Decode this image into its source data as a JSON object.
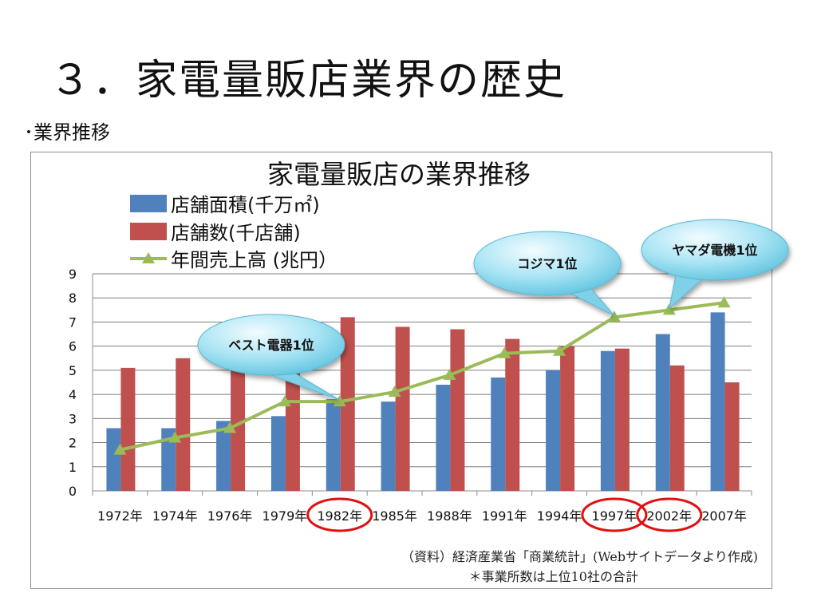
{
  "slide": {
    "title": "３．家電量販店業界の歴史",
    "section_label": "･業界推移"
  },
  "chart_data": {
    "type": "bar",
    "title": "家電量販店の業界推移",
    "categories": [
      "1972年",
      "1974年",
      "1976年",
      "1979年",
      "1982年",
      "1985年",
      "1988年",
      "1991年",
      "1994年",
      "1997年",
      "2002年",
      "2007年"
    ],
    "series": [
      {
        "name": "店舗面積(千万㎡)",
        "type": "bar",
        "color": "#4f81bd",
        "values": [
          2.6,
          2.6,
          2.9,
          3.1,
          3.8,
          3.7,
          4.4,
          4.7,
          5.0,
          5.8,
          6.5,
          7.4
        ]
      },
      {
        "name": "店舗数(千店舗)",
        "type": "bar",
        "color": "#c0504d",
        "values": [
          5.1,
          5.5,
          5.1,
          5.1,
          7.2,
          6.8,
          6.7,
          6.3,
          6.0,
          5.9,
          5.2,
          4.5
        ]
      },
      {
        "name": "年間売上高 (兆円）",
        "type": "line",
        "color": "#9bbb59",
        "values": [
          1.7,
          2.2,
          2.6,
          3.7,
          3.7,
          4.1,
          4.8,
          5.7,
          5.8,
          7.2,
          7.5,
          7.8
        ]
      }
    ],
    "ylim": [
      0,
      9
    ],
    "yticks": [
      "0",
      "1",
      "2",
      "3",
      "4",
      "5",
      "6",
      "7",
      "8",
      "9"
    ],
    "grid": true,
    "legend_position": "top-left",
    "annotations": [
      {
        "text": "ベスト電器1位",
        "category_index": 4
      },
      {
        "text": "コジマ1位",
        "category_index": 9
      },
      {
        "text": "ヤマダ電機1位",
        "category_index": 10
      }
    ],
    "highlighted_categories": [
      4,
      9,
      10
    ],
    "source_note": "（資料）経済産業省「商業統計」(Webサイトデータより作成)",
    "footnote": "＊事業所数は上位10社の合計"
  }
}
